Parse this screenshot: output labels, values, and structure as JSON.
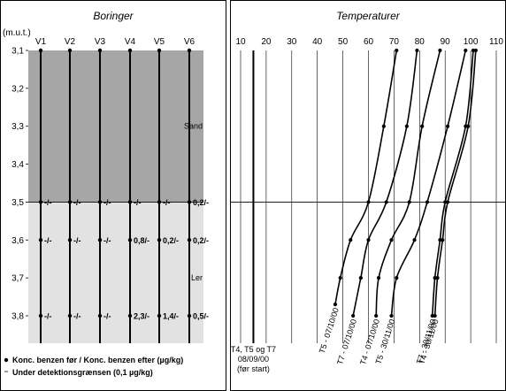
{
  "chart_data": [
    {
      "type": "line",
      "title": "Boringer",
      "ylabel": "(m.u.t.)",
      "ylim": [
        3.1,
        3.88
      ],
      "y_ticks": [
        "3,1",
        "3,2",
        "3,3",
        "3,4",
        "3,5",
        "3,6",
        "3,7",
        "3,8"
      ],
      "grid": false,
      "layers": [
        {
          "name": "Sand",
          "from": 3.1,
          "to": 3.5,
          "color": "#a6a6a6"
        },
        {
          "name": "Ler",
          "from": 3.5,
          "to": 3.88,
          "color": "#e2e2e2"
        }
      ],
      "series": [
        {
          "name": "V1",
          "points": [
            {
              "depth": 3.5,
              "label": "-/-"
            },
            {
              "depth": 3.6,
              "label": "-/-"
            },
            {
              "depth": 3.8,
              "label": "-/-"
            }
          ]
        },
        {
          "name": "V2",
          "points": [
            {
              "depth": 3.5,
              "label": "-/-"
            },
            {
              "depth": 3.6,
              "label": "-/-"
            },
            {
              "depth": 3.8,
              "label": "-/-"
            }
          ]
        },
        {
          "name": "V3",
          "points": [
            {
              "depth": 3.5,
              "label": "-/-"
            },
            {
              "depth": 3.6,
              "label": "-/-"
            },
            {
              "depth": 3.8,
              "label": "-/-"
            }
          ]
        },
        {
          "name": "V4",
          "points": [
            {
              "depth": 3.5,
              "label": "-/-"
            },
            {
              "depth": 3.6,
              "label": "0,8/-"
            },
            {
              "depth": 3.8,
              "label": "2,3/-"
            }
          ]
        },
        {
          "name": "V5",
          "points": [
            {
              "depth": 3.5,
              "label": "-/-"
            },
            {
              "depth": 3.6,
              "label": "0,2/-"
            },
            {
              "depth": 3.8,
              "label": "1,4/-"
            }
          ]
        },
        {
          "name": "V6",
          "points": [
            {
              "depth": 3.5,
              "label": "0,2/-"
            },
            {
              "depth": 3.6,
              "label": "0,2/-"
            },
            {
              "depth": 3.8,
              "label": "0,5/-"
            }
          ]
        }
      ],
      "legend": [
        "Konc. benzen før / Konc. benzen efter (µg/kg)",
        "Under detektionsgrænsen (0,1 µg/kg)"
      ]
    },
    {
      "type": "line",
      "title": "Temperaturer",
      "xlim": [
        10,
        110
      ],
      "x_ticks": [
        "10",
        "20",
        "30",
        "40",
        "50",
        "60",
        "70",
        "80",
        "90",
        "100",
        "110"
      ],
      "ylim": [
        3.1,
        3.88
      ],
      "grid": true,
      "series": [
        {
          "name": "T4, T5 og T7 08/09/00 (før start)",
          "x": [
            15,
            15
          ],
          "y": [
            3.1,
            3.88
          ]
        },
        {
          "name": "T5 - 07/10/00",
          "x": [
            71,
            66,
            60,
            53,
            49,
            47
          ],
          "y": [
            3.1,
            3.3,
            3.5,
            3.6,
            3.7,
            3.77
          ]
        },
        {
          "name": "T7 - 07/10/00",
          "x": [
            79,
            75,
            67,
            60,
            57,
            54
          ],
          "y": [
            3.1,
            3.3,
            3.5,
            3.6,
            3.7,
            3.8
          ]
        },
        {
          "name": "T4 - 07/10/00",
          "x": [
            88,
            81,
            76,
            69,
            64,
            63
          ],
          "y": [
            3.1,
            3.3,
            3.5,
            3.6,
            3.7,
            3.8
          ]
        },
        {
          "name": "T5 - 30/11/00",
          "x": [
            98,
            91,
            83,
            78,
            71,
            69
          ],
          "y": [
            3.1,
            3.3,
            3.5,
            3.6,
            3.7,
            3.8
          ]
        },
        {
          "name": "T7 - 30/11/00",
          "x": [
            101,
            98,
            90,
            88,
            86,
            85
          ],
          "y": [
            3.1,
            3.3,
            3.5,
            3.6,
            3.7,
            3.8
          ]
        },
        {
          "name": "T4 - 30/11/00",
          "x": [
            102,
            99,
            91,
            89,
            87,
            86
          ],
          "y": [
            3.1,
            3.3,
            3.5,
            3.6,
            3.7,
            3.8
          ]
        }
      ],
      "annotation": {
        "lines": [
          "T4, T5 og T7",
          "08/09/00",
          "(før start)"
        ]
      },
      "curve_labels": [
        "T5 - 07/10/00",
        "T7 - 07/10/00",
        "T4 - 07/10/00",
        "T5 - 30/11/00",
        "T7 - 30/11/00",
        "T4 - 30/11/00"
      ]
    }
  ]
}
